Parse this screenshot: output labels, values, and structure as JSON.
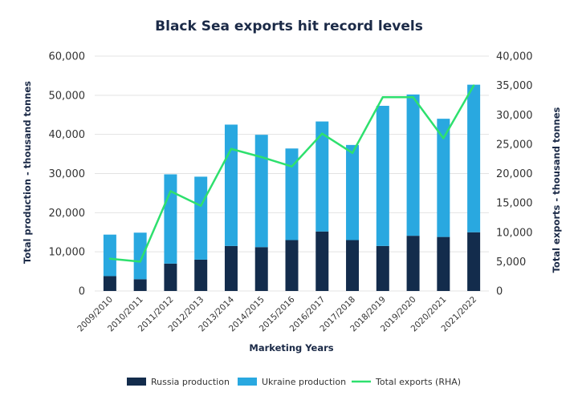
{
  "chart_data": {
    "type": "bar",
    "title": "Black Sea exports hit record levels",
    "xlabel": "Marketing Years",
    "ylabel": "Total production - thousand tonnes",
    "y2label": "Total exports - thousand tonnes",
    "ylim": [
      0,
      60000
    ],
    "y2lim": [
      0,
      40000
    ],
    "yticks": [
      "0",
      "10,000",
      "20,000",
      "30,000",
      "40,000",
      "50,000",
      "60,000"
    ],
    "y2ticks": [
      "0",
      "5,000",
      "10,000",
      "15,000",
      "20,000",
      "25,000",
      "30,000",
      "35,000",
      "40,000"
    ],
    "grid": true,
    "legend_position": "bottom",
    "categories": [
      "2009/2010",
      "2010/2011",
      "2011/2012",
      "2012/2013",
      "2013/2014",
      "2014/2015",
      "2015/2016",
      "2016/2017",
      "2017/2018",
      "2018/2019",
      "2019/2020",
      "2020/2021",
      "2021/2022"
    ],
    "series": [
      {
        "name": "Russia production",
        "type": "bar",
        "stacked": true,
        "axis": "left",
        "color": "#132c4c",
        "values": [
          3800,
          3000,
          7000,
          8000,
          11500,
          11200,
          13000,
          15200,
          13000,
          11500,
          14100,
          13800,
          15000
        ]
      },
      {
        "name": "Ukraine production",
        "type": "bar",
        "stacked": true,
        "axis": "left",
        "color": "#29a8e0",
        "values": [
          10600,
          11900,
          22800,
          21200,
          31000,
          28700,
          23400,
          28100,
          24300,
          35800,
          36100,
          30200,
          37700
        ]
      },
      {
        "name": "Total exports (RHA)",
        "type": "line",
        "axis": "right",
        "color": "#2ee06e",
        "values": [
          5500,
          5000,
          17000,
          14500,
          24200,
          22800,
          21200,
          26800,
          23500,
          33000,
          33000,
          26000,
          35000
        ]
      }
    ]
  }
}
